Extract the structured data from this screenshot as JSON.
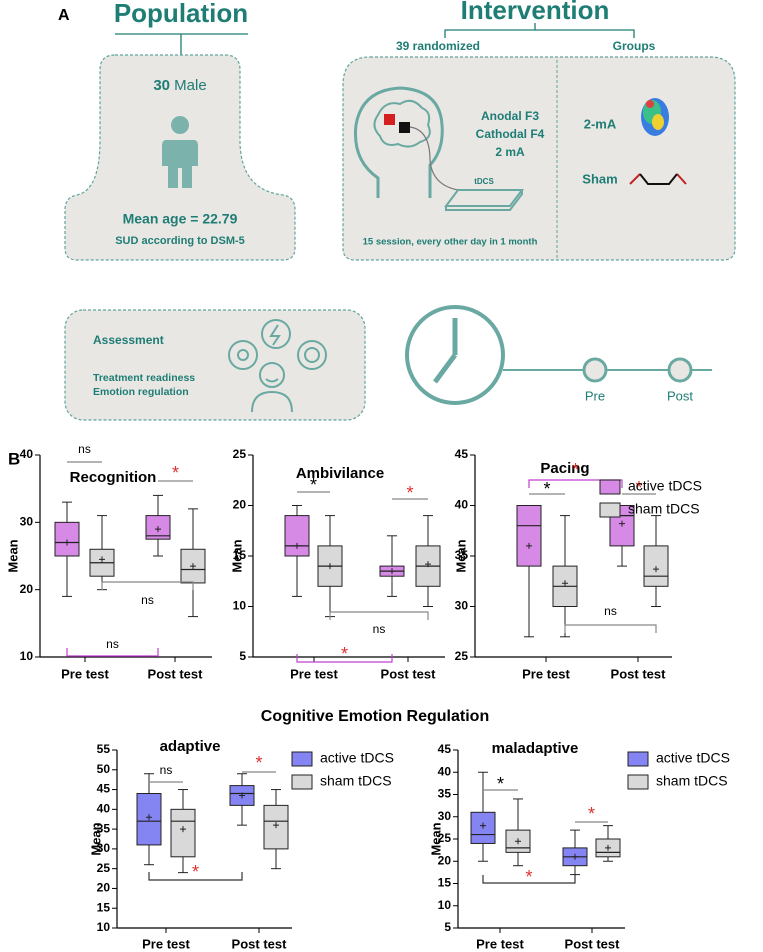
{
  "panel_a": {
    "label": "A",
    "population": {
      "title": "Population",
      "count": "30",
      "sex": "Male",
      "age": "Mean age = 22.79",
      "criteria": "SUD according to DSM-5"
    },
    "intervention": {
      "title": "Intervention",
      "randomized": "39 randomized",
      "groups": "Groups",
      "anode": "Anodal F3",
      "cathode": "Cathodal F4",
      "current": "2 mA",
      "device": "tDCS",
      "schedule": "15 session, every other day in 1 month",
      "group_active": "2-mA",
      "group_sham": "Sham"
    },
    "assessment": {
      "title": "Assessment",
      "items": [
        "Treatment readiness",
        "Emotion regulation"
      ]
    },
    "timeline": [
      "Pre",
      "Post"
    ]
  },
  "panel_b": {
    "label": "B",
    "section_title": "Cognitive Emotion Regulation"
  },
  "chart_data": [
    {
      "type": "box",
      "title": "Recognition",
      "y_label": "Mean",
      "categories": [
        "Pre test",
        "Post test"
      ],
      "ylim": [
        10,
        40
      ],
      "yticks": [
        10,
        20,
        30,
        40
      ],
      "legend": false,
      "series": [
        {
          "color": "#d68ae6",
          "min": [
            19,
            25
          ],
          "q1": [
            25,
            27.5
          ],
          "median": [
            27,
            28
          ],
          "q3": [
            30,
            31
          ],
          "max": [
            33,
            34
          ],
          "mean": [
            27,
            29
          ]
        },
        {
          "color": "#d9d9d9",
          "min": [
            20,
            16
          ],
          "q1": [
            22,
            21
          ],
          "median": [
            24,
            23
          ],
          "q3": [
            26,
            26
          ],
          "max": [
            31,
            32
          ],
          "mean": [
            24.5,
            23.5
          ]
        }
      ],
      "annotations": [
        {
          "text": "ns",
          "color": "#000000"
        },
        {
          "text": "*",
          "color": "#e03030"
        },
        {
          "text": "ns",
          "color": "#000000"
        },
        {
          "text": "ns",
          "color": "#000000"
        }
      ]
    },
    {
      "type": "box",
      "title": "Ambivilance",
      "y_label": "Mean",
      "categories": [
        "Pre test",
        "Post test"
      ],
      "ylim": [
        5,
        25
      ],
      "yticks": [
        5,
        10,
        15,
        20,
        25
      ],
      "legend": false,
      "series": [
        {
          "color": "#d68ae6",
          "min": [
            11,
            11
          ],
          "q1": [
            15,
            13
          ],
          "median": [
            16,
            13.5
          ],
          "q3": [
            19,
            14
          ],
          "max": [
            20,
            17
          ],
          "mean": [
            16,
            13.5
          ]
        },
        {
          "color": "#d9d9d9",
          "min": [
            9,
            10
          ],
          "q1": [
            12,
            12
          ],
          "median": [
            14,
            14
          ],
          "q3": [
            16,
            16
          ],
          "max": [
            19,
            19
          ],
          "mean": [
            14,
            14.2
          ]
        }
      ],
      "annotations": [
        {
          "text": "*",
          "color": "#000000"
        },
        {
          "text": "*",
          "color": "#e03030"
        },
        {
          "text": "ns",
          "color": "#000000"
        },
        {
          "text": "*",
          "color": "#e03030"
        }
      ]
    },
    {
      "type": "box",
      "title": "Pacing",
      "y_label": "Mean",
      "categories": [
        "Pre test",
        "Post test"
      ],
      "ylim": [
        25,
        45
      ],
      "yticks": [
        25,
        30,
        35,
        40,
        45
      ],
      "legend": true,
      "series": [
        {
          "name": "active tDCS",
          "color": "#d68ae6",
          "min": [
            27,
            34
          ],
          "q1": [
            34,
            36
          ],
          "median": [
            38,
            39
          ],
          "q3": [
            40,
            40
          ],
          "max": [
            40,
            40
          ],
          "mean": [
            36,
            38.2
          ]
        },
        {
          "name": "sham tDCS",
          "color": "#d9d9d9",
          "min": [
            27,
            30
          ],
          "q1": [
            30,
            32
          ],
          "median": [
            32,
            33
          ],
          "q3": [
            34,
            36
          ],
          "max": [
            39,
            39
          ],
          "mean": [
            32.3,
            33.7
          ]
        }
      ],
      "annotations": [
        {
          "text": "*",
          "color": "#000000"
        },
        {
          "text": "*",
          "color": "#e03030"
        },
        {
          "text": "ns",
          "color": "#000000"
        },
        {
          "text": "*",
          "color": "#e03030"
        }
      ]
    },
    {
      "type": "box",
      "title": "adaptive",
      "y_label": "Mean",
      "categories": [
        "Pre test",
        "Post test"
      ],
      "ylim": [
        10,
        55
      ],
      "yticks": [
        10,
        15,
        20,
        25,
        30,
        35,
        40,
        45,
        50,
        55
      ],
      "legend": true,
      "series": [
        {
          "name": "active tDCS",
          "color": "#8484f2",
          "min": [
            26,
            36
          ],
          "q1": [
            31,
            41
          ],
          "median": [
            37,
            44
          ],
          "q3": [
            44,
            46
          ],
          "max": [
            49,
            49
          ],
          "mean": [
            38,
            43.5
          ]
        },
        {
          "name": "sham tDCS",
          "color": "#d9d9d9",
          "min": [
            24,
            25
          ],
          "q1": [
            28,
            30
          ],
          "median": [
            37,
            37
          ],
          "q3": [
            40,
            41
          ],
          "max": [
            45,
            45
          ],
          "mean": [
            35,
            36
          ]
        }
      ],
      "annotations": [
        {
          "text": "ns",
          "color": "#000000"
        },
        {
          "text": "*",
          "color": "#e03030"
        },
        {
          "text": "*",
          "color": "#e03030"
        }
      ]
    },
    {
      "type": "box",
      "title": "maladaptive",
      "y_label": "Mean",
      "categories": [
        "Pre test",
        "Post test"
      ],
      "ylim": [
        5,
        45
      ],
      "yticks": [
        5,
        10,
        15,
        20,
        25,
        30,
        35,
        40,
        45
      ],
      "legend": true,
      "series": [
        {
          "name": "active tDCS",
          "color": "#8484f2",
          "min": [
            20,
            17
          ],
          "q1": [
            24,
            19
          ],
          "median": [
            26,
            21
          ],
          "q3": [
            31,
            23
          ],
          "max": [
            40,
            27
          ],
          "mean": [
            28,
            21
          ]
        },
        {
          "name": "sham tDCS",
          "color": "#d9d9d9",
          "min": [
            19,
            20
          ],
          "q1": [
            22,
            21
          ],
          "median": [
            23,
            22
          ],
          "q3": [
            27,
            25
          ],
          "max": [
            34,
            28
          ],
          "mean": [
            24.5,
            23
          ]
        }
      ],
      "annotations": [
        {
          "text": "*",
          "color": "#000000"
        },
        {
          "text": "*",
          "color": "#e03030"
        },
        {
          "text": "*",
          "color": "#e03030"
        }
      ]
    }
  ]
}
